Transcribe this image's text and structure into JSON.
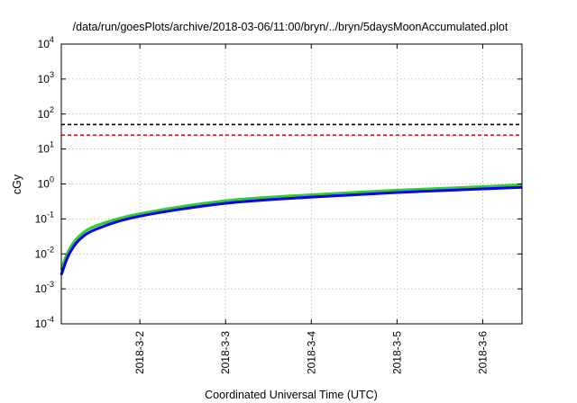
{
  "chart_data": {
    "type": "line",
    "title": "/data/run/goesPlots/archive/2018-03-06/11:00/bryn/../bryn/5daysMoonAccumulated.plot",
    "xlabel": "Coordinated Universal Time (UTC)",
    "ylabel": "cGy",
    "y_scale": "log",
    "ylim": [
      0.0001,
      10000
    ],
    "x_start": "2018-03-01 02:00",
    "x_end": "2018-03-06 11:00",
    "x_ticks": [
      "2018-3-2",
      "2018-3-3",
      "2018-3-4",
      "2018-3-5",
      "2018-3-6"
    ],
    "y_ticks": [
      {
        "base": "10",
        "exp": "-4",
        "value": 0.0001
      },
      {
        "base": "10",
        "exp": "-3",
        "value": 0.001
      },
      {
        "base": "10",
        "exp": "-2",
        "value": 0.01
      },
      {
        "base": "10",
        "exp": "-1",
        "value": 0.1
      },
      {
        "base": "10",
        "exp": "0",
        "value": 1
      },
      {
        "base": "10",
        "exp": "1",
        "value": 10
      },
      {
        "base": "10",
        "exp": "2",
        "value": 100
      },
      {
        "base": "10",
        "exp": "3",
        "value": 1000
      },
      {
        "base": "10",
        "exp": "4",
        "value": 10000
      }
    ],
    "grid": true,
    "thresholds": [
      {
        "value": 50,
        "color": "#000000",
        "style": "dashed"
      },
      {
        "value": 25,
        "color": "#e41a1c",
        "style": "dashed"
      }
    ],
    "series": [
      {
        "color": "#33cc33",
        "points": [
          {
            "x": "2018-03-01 02:00",
            "y": 0.0035
          },
          {
            "x": "2018-03-01 04:00",
            "y": 0.012
          },
          {
            "x": "2018-03-01 07:00",
            "y": 0.032
          },
          {
            "x": "2018-03-01 12:00",
            "y": 0.065
          },
          {
            "x": "2018-03-02 00:00",
            "y": 0.14
          },
          {
            "x": "2018-03-03 00:00",
            "y": 0.33
          },
          {
            "x": "2018-03-04 00:00",
            "y": 0.49
          },
          {
            "x": "2018-03-05 00:00",
            "y": 0.66
          },
          {
            "x": "2018-03-06 00:00",
            "y": 0.83
          },
          {
            "x": "2018-03-06 11:00",
            "y": 0.95
          }
        ]
      },
      {
        "color": "#0000ff",
        "points": [
          {
            "x": "2018-03-01 02:00",
            "y": 0.0025
          },
          {
            "x": "2018-03-01 04:00",
            "y": 0.009
          },
          {
            "x": "2018-03-01 07:00",
            "y": 0.025
          },
          {
            "x": "2018-03-01 12:00",
            "y": 0.052
          },
          {
            "x": "2018-03-02 00:00",
            "y": 0.12
          },
          {
            "x": "2018-03-03 00:00",
            "y": 0.28
          },
          {
            "x": "2018-03-04 00:00",
            "y": 0.42
          },
          {
            "x": "2018-03-05 00:00",
            "y": 0.57
          },
          {
            "x": "2018-03-06 00:00",
            "y": 0.72
          },
          {
            "x": "2018-03-06 11:00",
            "y": 0.8
          }
        ]
      }
    ]
  }
}
